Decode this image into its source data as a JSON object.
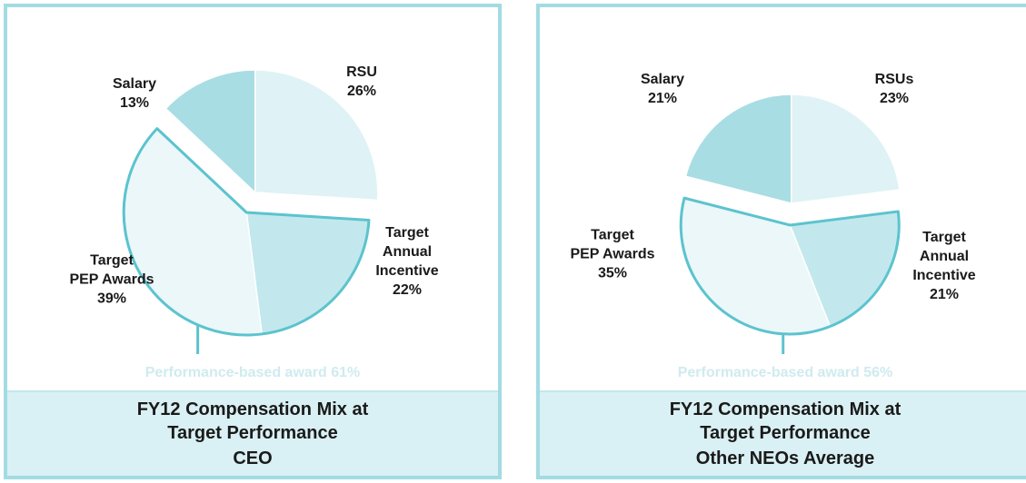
{
  "chart_data": [
    {
      "type": "pie",
      "title": "FY12 Compensation Mix at Target Performance",
      "subtitle": "CEO",
      "categories": [
        "Salary",
        "RSU",
        "Target Annual Incentive",
        "Target PEP Awards"
      ],
      "values": [
        13,
        26,
        22,
        39
      ],
      "value_labels": [
        "13%",
        "26%",
        "22%",
        "39%"
      ],
      "colors": [
        "#a9dde4",
        "#dff2f5",
        "#c2e8ed",
        "#ebf7f9"
      ],
      "annotation": "Performance-based award 61%"
    },
    {
      "type": "pie",
      "title": "FY12 Compensation Mix at Target Performance",
      "subtitle": "Other NEOs Average",
      "categories": [
        "Salary",
        "RSUs",
        "Target Annual Incentive",
        "Target PEP Awards"
      ],
      "values": [
        21,
        23,
        21,
        35
      ],
      "value_labels": [
        "21%",
        "23%",
        "21%",
        "35%"
      ],
      "colors": [
        "#a9dde4",
        "#dff2f5",
        "#c2e8ed",
        "#ebf7f9"
      ],
      "annotation": "Performance-based award 56%"
    }
  ]
}
